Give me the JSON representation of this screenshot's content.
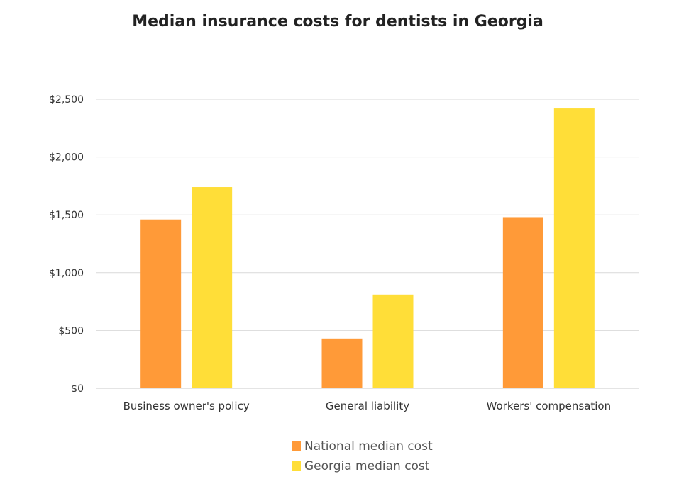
{
  "chart_data": {
    "type": "bar",
    "title": "Median insurance costs for dentists in Georgia",
    "xlabel": "",
    "ylabel": "",
    "categories": [
      "Business owner's policy",
      "General liability",
      "Workers' compensation"
    ],
    "series": [
      {
        "name": "National median cost",
        "color": "#FF9A38",
        "values": [
          1460,
          430,
          1480
        ]
      },
      {
        "name": "Georgia median cost",
        "color": "#FFDE38",
        "values": [
          1740,
          810,
          2420
        ]
      }
    ],
    "ylim": [
      0,
      2500
    ],
    "yticks": [
      0,
      500,
      1000,
      1500,
      2000,
      2500
    ],
    "ytick_labels": [
      "$0",
      "$500",
      "$1,000",
      "$1,500",
      "$2,000",
      "$2,500"
    ],
    "grid": true,
    "legend_position": "bottom-center"
  }
}
